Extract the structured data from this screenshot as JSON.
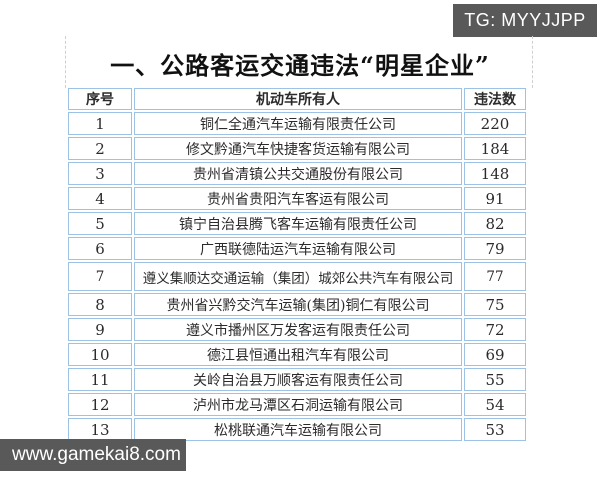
{
  "badge": {
    "text": "TG: MYYJJPP"
  },
  "watermark": {
    "text": "www.gamekai8.com"
  },
  "title": "一、公路客运交通违法“明星企业”",
  "table": {
    "headers": [
      "序号",
      "机动车所有人",
      "违法数"
    ],
    "rows": [
      {
        "no": "1",
        "owner": "铜仁全通汽车运输有限责任公司",
        "count": "220"
      },
      {
        "no": "2",
        "owner": "修文黔通汽车快捷客货运输有限公司",
        "count": "184"
      },
      {
        "no": "3",
        "owner": "贵州省清镇公共交通股份有限公司",
        "count": "148"
      },
      {
        "no": "4",
        "owner": "贵州省贵阳汽车客运有限公司",
        "count": "91"
      },
      {
        "no": "5",
        "owner": "镇宁自治县腾飞客车运输有限责任公司",
        "count": "82"
      },
      {
        "no": "6",
        "owner": "广西联德陆运汽车运输有限公司",
        "count": "79"
      },
      {
        "no": "7",
        "owner": "遵义集顺达交通运输（集团）城郊公共汽车有限公司",
        "count": "77"
      },
      {
        "no": "8",
        "owner": "贵州省兴黔交汽车运输(集团)铜仁有限公司",
        "count": "75"
      },
      {
        "no": "9",
        "owner": "遵义市播州区万发客运有限责任公司",
        "count": "72"
      },
      {
        "no": "10",
        "owner": "德江县恒通出租汽车有限公司",
        "count": "69"
      },
      {
        "no": "11",
        "owner": "关岭自治县万顺客运有限责任公司",
        "count": "55"
      },
      {
        "no": "12",
        "owner": "泸州市龙马潭区石洞运输有限公司",
        "count": "54"
      },
      {
        "no": "13",
        "owner": "松桃联通汽车运输有限公司",
        "count": "53"
      }
    ]
  },
  "colors": {
    "table_border": "#9cc2e5",
    "overlay_bg": "#595959",
    "overlay_text": "#ffffff",
    "title_text": "#111111"
  }
}
